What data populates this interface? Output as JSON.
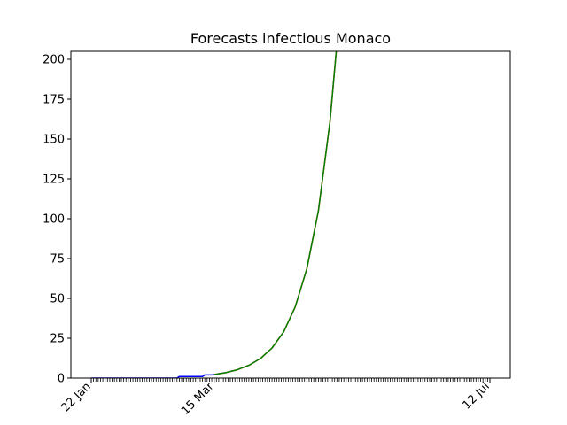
{
  "chart_data": {
    "type": "line",
    "title": "Forecasts infectious Monaco",
    "xlabel": "",
    "ylabel": "",
    "x_axis_type": "date",
    "x_range": [
      "2020-01-22",
      "2020-07-12"
    ],
    "ylim": [
      0,
      205
    ],
    "y_ticks": [
      0,
      25,
      50,
      75,
      100,
      125,
      150,
      175,
      200
    ],
    "x_tick_labels": [
      {
        "date": "2020-01-22",
        "label": "22 Jan"
      },
      {
        "date": "2020-03-15",
        "label": "15 Mar"
      },
      {
        "date": "2020-07-12",
        "label": "12 Jul"
      }
    ],
    "x_minor_ticks": "daily",
    "grid": false,
    "legend": "none",
    "series": [
      {
        "color": "#0000ff",
        "points": [
          {
            "x": "2020-01-22",
            "y": 0
          },
          {
            "x": "2020-02-28",
            "y": 0
          },
          {
            "x": "2020-02-29",
            "y": 1
          },
          {
            "x": "2020-03-10",
            "y": 1
          },
          {
            "x": "2020-03-11",
            "y": 2
          },
          {
            "x": "2020-03-14",
            "y": 2
          },
          {
            "x": "2020-03-15",
            "y": 2.2
          }
        ]
      },
      {
        "color": "#ff0000",
        "points": [
          {
            "x": "2020-03-15",
            "y": 2.2
          },
          {
            "x": "2020-03-20",
            "y": 3.4
          },
          {
            "x": "2020-03-25",
            "y": 5.2
          },
          {
            "x": "2020-03-30",
            "y": 8.0
          },
          {
            "x": "2020-04-04",
            "y": 12.3
          },
          {
            "x": "2020-04-09",
            "y": 18.9
          },
          {
            "x": "2020-04-14",
            "y": 29.0
          },
          {
            "x": "2020-04-19",
            "y": 44.6
          },
          {
            "x": "2020-04-24",
            "y": 68.5
          },
          {
            "x": "2020-04-29",
            "y": 105.0
          },
          {
            "x": "2020-05-04",
            "y": 161.0
          },
          {
            "x": "2020-05-08",
            "y": 226.0
          }
        ]
      },
      {
        "color": "#008000",
        "points": [
          {
            "x": "2020-03-15",
            "y": 2.2
          },
          {
            "x": "2020-03-20",
            "y": 3.4
          },
          {
            "x": "2020-03-25",
            "y": 5.2
          },
          {
            "x": "2020-03-30",
            "y": 8.0
          },
          {
            "x": "2020-04-04",
            "y": 12.3
          },
          {
            "x": "2020-04-09",
            "y": 18.9
          },
          {
            "x": "2020-04-14",
            "y": 29.0
          },
          {
            "x": "2020-04-19",
            "y": 44.6
          },
          {
            "x": "2020-04-24",
            "y": 68.5
          },
          {
            "x": "2020-04-29",
            "y": 105.0
          },
          {
            "x": "2020-05-04",
            "y": 161.0
          },
          {
            "x": "2020-05-08",
            "y": 226.0
          }
        ]
      }
    ]
  }
}
